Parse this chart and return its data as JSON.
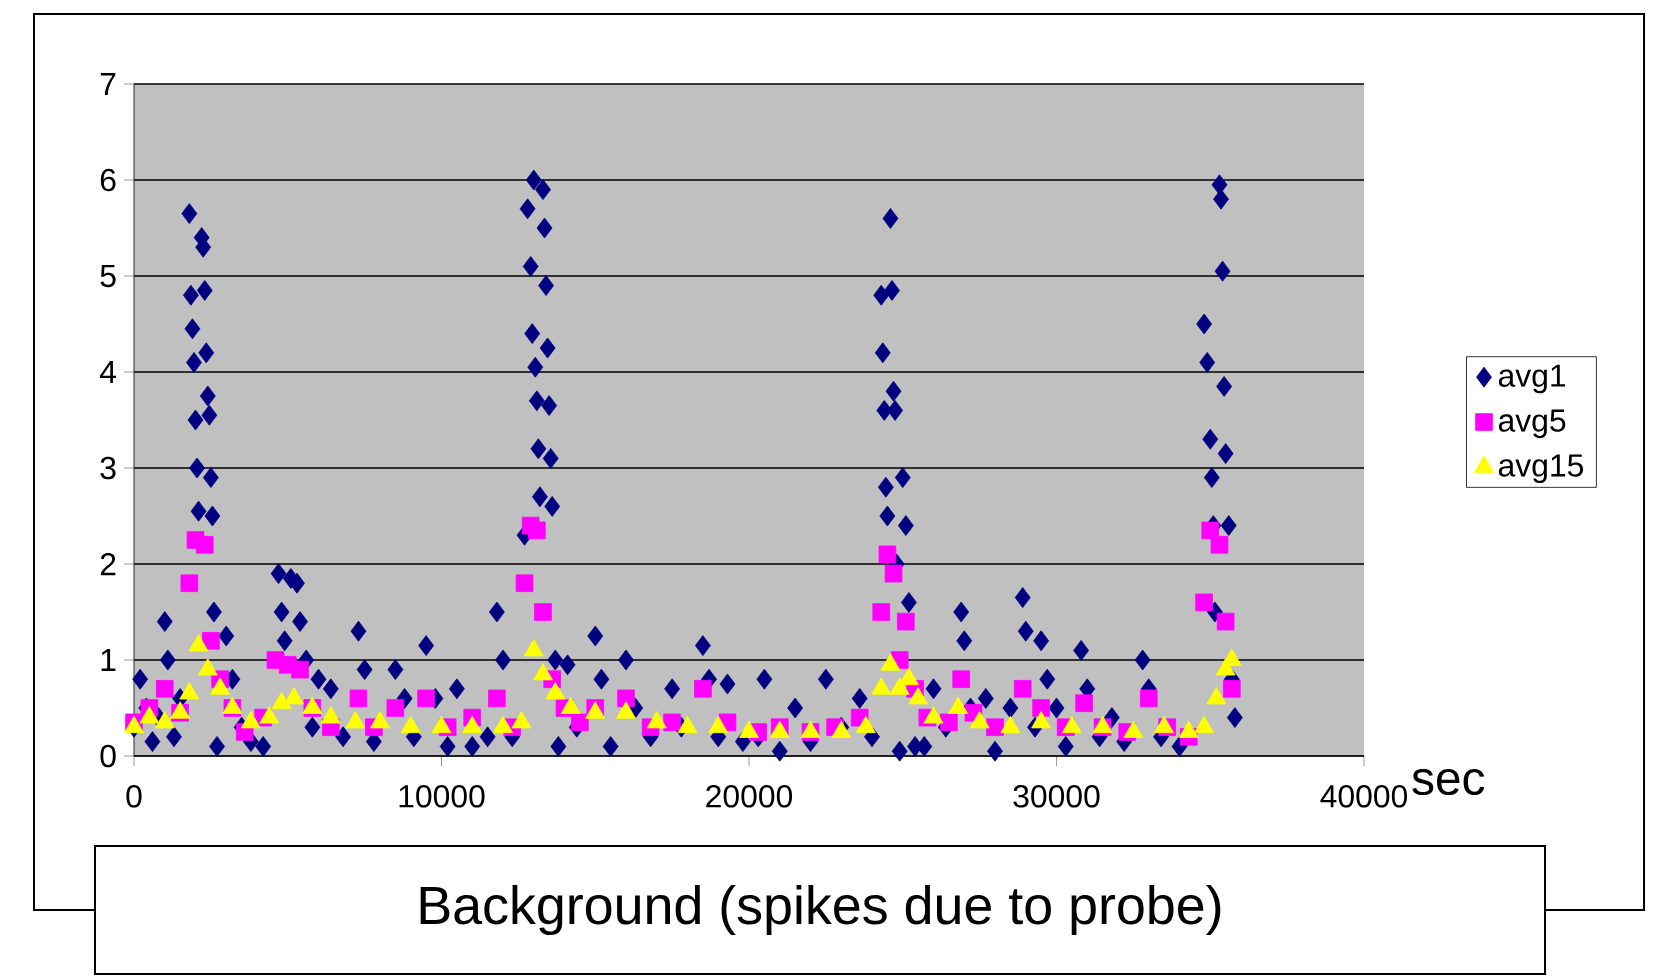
{
  "chart_data": {
    "type": "scatter",
    "xlabel": "sec",
    "xlim": [
      0,
      40000
    ],
    "xticks": [
      0,
      10000,
      20000,
      30000,
      40000
    ],
    "ylim": [
      0,
      7
    ],
    "yticks": [
      0,
      1,
      2,
      3,
      4,
      5,
      6,
      7
    ],
    "grid": "y",
    "legend": "right",
    "annotations": [
      "Background (spikes due to probe)"
    ],
    "series": [
      {
        "name": "avg1",
        "color": "#000080",
        "marker": "diamond",
        "x": [
          0,
          200,
          400,
          600,
          800,
          1000,
          1100,
          1300,
          1500,
          1800,
          1850,
          1900,
          1950,
          2000,
          2050,
          2100,
          2200,
          2250,
          2300,
          2350,
          2400,
          2450,
          2500,
          2550,
          2600,
          2700,
          3000,
          3200,
          3500,
          3800,
          4200,
          4700,
          4800,
          4900,
          5100,
          5300,
          5400,
          5600,
          5800,
          6000,
          6400,
          6800,
          7300,
          7500,
          7800,
          8500,
          8800,
          9100,
          9500,
          9800,
          10200,
          10500,
          11000,
          11500,
          11800,
          12000,
          12300,
          12700,
          12800,
          12900,
          12950,
          13000,
          13050,
          13100,
          13150,
          13200,
          13300,
          13350,
          13400,
          13450,
          13500,
          13550,
          13600,
          13700,
          13800,
          14100,
          14400,
          15000,
          15200,
          15500,
          16000,
          16300,
          16800,
          17500,
          17800,
          18500,
          18700,
          19000,
          19300,
          19800,
          20300,
          20500,
          21000,
          21500,
          22000,
          22500,
          23000,
          23600,
          24000,
          24300,
          24350,
          24400,
          24450,
          24500,
          24600,
          24650,
          24700,
          24750,
          24800,
          24900,
          25000,
          25100,
          25200,
          25400,
          25700,
          26000,
          26400,
          26900,
          27000,
          27200,
          27700,
          28000,
          28500,
          28900,
          29000,
          29300,
          29500,
          29700,
          30000,
          30300,
          30800,
          31000,
          31400,
          31800,
          32200,
          32800,
          33000,
          33400,
          34000,
          34800,
          34900,
          35000,
          35050,
          35100,
          35150,
          35300,
          35350,
          35400,
          35450,
          35500,
          35600,
          35700,
          35800
        ],
        "values": [
          0.3,
          0.8,
          0.5,
          0.15,
          0.4,
          1.4,
          1.0,
          0.2,
          0.6,
          5.65,
          4.8,
          4.45,
          4.1,
          3.5,
          3.0,
          2.55,
          5.4,
          5.3,
          4.85,
          4.2,
          3.75,
          3.55,
          2.9,
          2.5,
          1.5,
          0.1,
          1.25,
          0.8,
          0.3,
          0.15,
          0.1,
          1.9,
          1.5,
          1.2,
          1.85,
          1.8,
          1.4,
          1.0,
          0.3,
          0.8,
          0.7,
          0.2,
          1.3,
          0.9,
          0.15,
          0.9,
          0.6,
          0.2,
          1.15,
          0.6,
          0.1,
          0.7,
          0.1,
          0.2,
          1.5,
          1.0,
          0.2,
          2.3,
          5.7,
          5.1,
          4.4,
          6.0,
          4.05,
          3.7,
          3.2,
          2.7,
          5.9,
          5.5,
          4.9,
          4.25,
          3.65,
          3.1,
          2.6,
          1.0,
          0.1,
          0.95,
          0.3,
          1.25,
          0.8,
          0.1,
          1.0,
          0.5,
          0.2,
          0.7,
          0.3,
          1.15,
          0.8,
          0.2,
          0.75,
          0.15,
          0.2,
          0.8,
          0.05,
          0.5,
          0.15,
          0.8,
          0.3,
          0.6,
          0.2,
          4.8,
          4.2,
          3.6,
          2.8,
          2.5,
          5.6,
          4.85,
          3.8,
          3.6,
          2.0,
          0.05,
          2.9,
          2.4,
          1.6,
          0.1,
          0.1,
          0.7,
          0.3,
          1.5,
          1.2,
          0.5,
          0.6,
          0.05,
          0.5,
          1.65,
          1.3,
          0.3,
          1.2,
          0.8,
          0.5,
          0.1,
          1.1,
          0.7,
          0.2,
          0.4,
          0.15,
          1.0,
          0.7,
          0.2,
          0.1,
          4.5,
          4.1,
          3.3,
          2.9,
          2.4,
          1.5,
          5.95,
          5.8,
          5.05,
          3.85,
          3.15,
          2.4,
          0.8,
          0.4
        ]
      },
      {
        "name": "avg5",
        "color": "#ff00ff",
        "marker": "square",
        "x": [
          0,
          500,
          1000,
          1500,
          1800,
          2000,
          2300,
          2500,
          2800,
          3200,
          3600,
          4200,
          4600,
          5000,
          5400,
          5800,
          6400,
          7300,
          7800,
          8500,
          9500,
          10200,
          11000,
          11800,
          12300,
          12700,
          12900,
          13100,
          13300,
          13600,
          14000,
          14500,
          15000,
          16000,
          16800,
          17500,
          18500,
          19300,
          20300,
          21000,
          22000,
          22800,
          23600,
          24300,
          24500,
          24700,
          24900,
          25100,
          25400,
          25800,
          26500,
          26900,
          27300,
          28000,
          28900,
          29500,
          30300,
          30900,
          31500,
          32300,
          33000,
          33600,
          34300,
          34800,
          35000,
          35300,
          35500,
          35700
        ],
        "values": [
          0.35,
          0.5,
          0.7,
          0.45,
          1.8,
          2.25,
          2.2,
          1.2,
          0.8,
          0.5,
          0.25,
          0.4,
          1.0,
          0.95,
          0.9,
          0.5,
          0.3,
          0.6,
          0.3,
          0.5,
          0.6,
          0.3,
          0.4,
          0.6,
          0.3,
          1.8,
          2.4,
          2.35,
          1.5,
          0.8,
          0.5,
          0.35,
          0.5,
          0.6,
          0.3,
          0.35,
          0.7,
          0.35,
          0.25,
          0.3,
          0.25,
          0.3,
          0.4,
          1.5,
          2.1,
          1.9,
          1.0,
          1.4,
          0.7,
          0.4,
          0.35,
          0.8,
          0.45,
          0.3,
          0.7,
          0.5,
          0.3,
          0.55,
          0.3,
          0.25,
          0.6,
          0.3,
          0.2,
          1.6,
          2.35,
          2.2,
          1.4,
          0.7
        ]
      },
      {
        "name": "avg15",
        "color": "#ffff00",
        "marker": "triangle",
        "x": [
          0,
          500,
          1000,
          1500,
          1800,
          2100,
          2400,
          2800,
          3200,
          3800,
          4400,
          4800,
          5200,
          5800,
          6400,
          7200,
          8000,
          9000,
          10000,
          11000,
          12000,
          12600,
          13000,
          13300,
          13700,
          14200,
          15000,
          16000,
          17000,
          18000,
          19000,
          20000,
          21000,
          22000,
          23000,
          23800,
          24300,
          24600,
          24900,
          25200,
          25500,
          26000,
          26800,
          27500,
          28500,
          29500,
          30500,
          31500,
          32500,
          33500,
          34300,
          34800,
          35200,
          35500,
          35700
        ],
        "values": [
          0.3,
          0.4,
          0.35,
          0.45,
          0.65,
          1.15,
          0.9,
          0.7,
          0.5,
          0.35,
          0.4,
          0.55,
          0.6,
          0.5,
          0.4,
          0.35,
          0.35,
          0.3,
          0.3,
          0.3,
          0.3,
          0.35,
          1.1,
          0.85,
          0.65,
          0.5,
          0.45,
          0.45,
          0.35,
          0.3,
          0.3,
          0.25,
          0.25,
          0.25,
          0.25,
          0.3,
          0.7,
          0.95,
          0.7,
          0.8,
          0.6,
          0.4,
          0.5,
          0.35,
          0.3,
          0.35,
          0.3,
          0.3,
          0.25,
          0.3,
          0.25,
          0.3,
          0.6,
          0.9,
          1.0
        ]
      }
    ]
  }
}
